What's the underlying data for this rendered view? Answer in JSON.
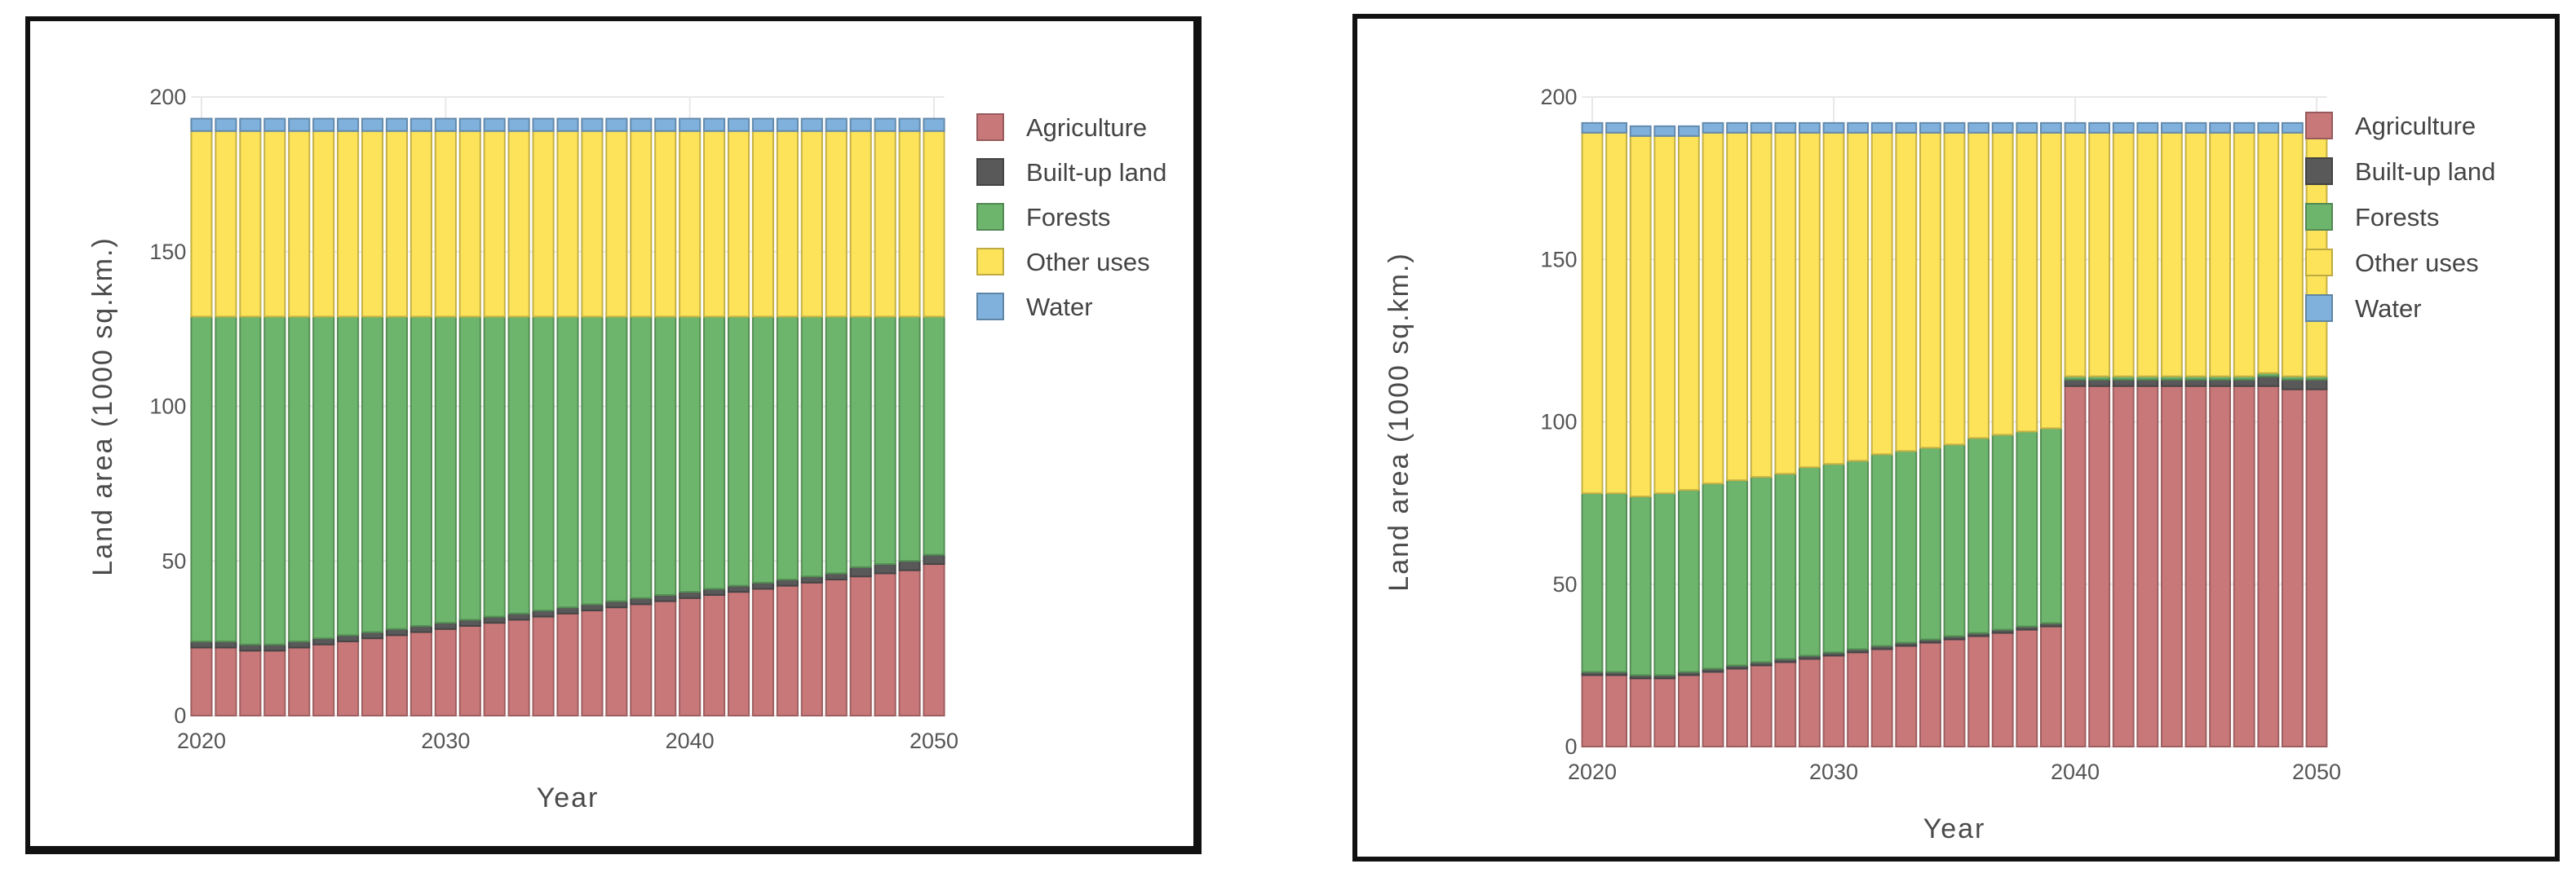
{
  "chart_data": [
    {
      "type": "bar",
      "stacked": true,
      "x": [
        2020,
        2021,
        2022,
        2023,
        2024,
        2025,
        2026,
        2027,
        2028,
        2029,
        2030,
        2031,
        2032,
        2033,
        2034,
        2035,
        2036,
        2037,
        2038,
        2039,
        2040,
        2041,
        2042,
        2043,
        2044,
        2045,
        2046,
        2047,
        2048,
        2049,
        2050
      ],
      "xlabel": "Year",
      "ylabel": "Land area (1000 sq.km.)",
      "ylim": [
        0,
        200
      ],
      "yticks": [
        0,
        50,
        100,
        150,
        200
      ],
      "xticks": [
        2020,
        2030,
        2040,
        2050
      ],
      "legend_position": "right",
      "series": [
        {
          "name": "Agriculture",
          "color": "#c9787a",
          "values": [
            22,
            22,
            21,
            21,
            22,
            23,
            24,
            25,
            26,
            27,
            28,
            29,
            30,
            31,
            32,
            33,
            34,
            35,
            36,
            37,
            38,
            39,
            40,
            41,
            42,
            43,
            44,
            45,
            46,
            47,
            49
          ]
        },
        {
          "name": "Built-up land",
          "color": "#595959",
          "values": [
            2,
            2,
            2,
            2,
            2,
            2,
            2,
            2,
            2,
            2,
            2,
            2,
            2,
            2,
            2,
            2,
            2,
            2,
            2,
            2,
            2,
            2,
            2,
            2,
            2,
            2,
            2,
            3,
            3,
            3,
            3
          ]
        },
        {
          "name": "Forests",
          "color": "#6db56d",
          "values": [
            105,
            105,
            106,
            106,
            105,
            104,
            103,
            102,
            101,
            100,
            99,
            98,
            97,
            96,
            95,
            94,
            93,
            92,
            91,
            90,
            89,
            88,
            87,
            86,
            85,
            84,
            83,
            81,
            80,
            79,
            77
          ]
        },
        {
          "name": "Other uses",
          "color": "#fce359",
          "values": [
            60,
            60,
            60,
            60,
            60,
            60,
            60,
            60,
            60,
            60,
            60,
            60,
            60,
            60,
            60,
            60,
            60,
            60,
            60,
            60,
            60,
            60,
            60,
            60,
            60,
            60,
            60,
            60,
            60,
            60,
            60
          ]
        },
        {
          "name": "Water",
          "color": "#7fb1dc",
          "values": [
            4,
            4,
            4,
            4,
            4,
            4,
            4,
            4,
            4,
            4,
            4,
            4,
            4,
            4,
            4,
            4,
            4,
            4,
            4,
            4,
            4,
            4,
            4,
            4,
            4,
            4,
            4,
            4,
            4,
            4,
            4
          ]
        }
      ]
    },
    {
      "type": "bar",
      "stacked": true,
      "x": [
        2020,
        2021,
        2022,
        2023,
        2024,
        2025,
        2026,
        2027,
        2028,
        2029,
        2030,
        2031,
        2032,
        2033,
        2034,
        2035,
        2036,
        2037,
        2038,
        2039,
        2040,
        2041,
        2042,
        2043,
        2044,
        2045,
        2046,
        2047,
        2048,
        2049,
        2050
      ],
      "xlabel": "Year",
      "ylabel": "Land area (1000 sq.km.)",
      "ylim": [
        0,
        200
      ],
      "yticks": [
        0,
        50,
        100,
        150,
        200
      ],
      "xticks": [
        2020,
        2030,
        2040,
        2050
      ],
      "legend_position": "right",
      "series": [
        {
          "name": "Agriculture",
          "color": "#c9787a",
          "values": [
            22,
            22,
            21,
            21,
            22,
            23,
            24,
            25,
            26,
            27,
            28,
            29,
            30,
            31,
            32,
            33,
            34,
            35,
            36,
            37,
            111,
            111,
            111,
            111,
            111,
            111,
            111,
            111,
            111,
            110,
            110
          ]
        },
        {
          "name": "Built-up land",
          "color": "#595959",
          "values": [
            1,
            1,
            1,
            1,
            1,
            1,
            1,
            1,
            1,
            1,
            1,
            1,
            1,
            1,
            1,
            1,
            1,
            1,
            1,
            1,
            2,
            2,
            2,
            2,
            2,
            2,
            2,
            2,
            3,
            3,
            3
          ]
        },
        {
          "name": "Forests",
          "color": "#6db56d",
          "values": [
            55,
            55,
            55,
            56,
            56,
            57,
            57,
            57,
            57,
            58,
            58,
            58,
            59,
            59,
            59,
            59,
            60,
            60,
            60,
            60,
            1,
            1,
            1,
            1,
            1,
            1,
            1,
            1,
            1,
            1,
            1
          ]
        },
        {
          "name": "Other uses",
          "color": "#fce359",
          "values": [
            111,
            111,
            111,
            110,
            109,
            108,
            107,
            106,
            105,
            103,
            102,
            101,
            99,
            98,
            97,
            96,
            94,
            93,
            92,
            91,
            75,
            75,
            75,
            75,
            75,
            75,
            75,
            75,
            74,
            75,
            75
          ]
        },
        {
          "name": "Water",
          "color": "#7fb1dc",
          "values": [
            3,
            3,
            3,
            3,
            3,
            3,
            3,
            3,
            3,
            3,
            3,
            3,
            3,
            3,
            3,
            3,
            3,
            3,
            3,
            3,
            3,
            3,
            3,
            3,
            3,
            3,
            3,
            3,
            3,
            3,
            3
          ]
        }
      ]
    }
  ]
}
